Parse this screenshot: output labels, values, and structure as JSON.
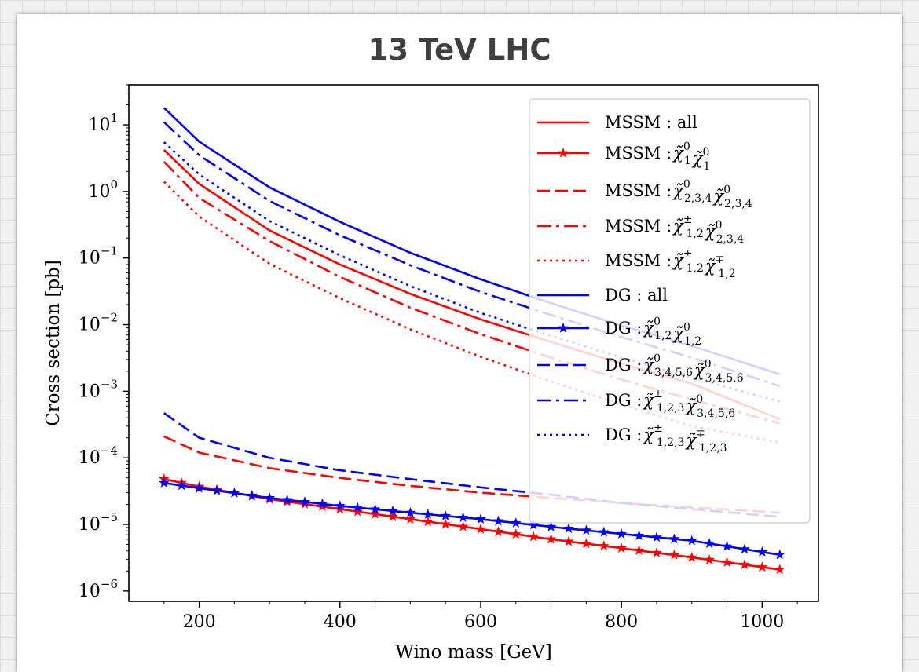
{
  "chart_data": {
    "type": "line",
    "title": "13 TeV LHC",
    "xlabel": "Wino mass [GeV]",
    "ylabel": "Cross section [pb]",
    "yscale": "log",
    "xlim": [
      100,
      1080
    ],
    "ylim": [
      7e-07,
      40
    ],
    "xticks": [
      200,
      400,
      600,
      800,
      1000
    ],
    "yticks": [
      {
        "exp": 1,
        "value": 10
      },
      {
        "exp": 0,
        "value": 1
      },
      {
        "exp": -1,
        "value": 0.1
      },
      {
        "exp": -2,
        "value": 0.01
      },
      {
        "exp": -3,
        "value": 0.001
      },
      {
        "exp": -4,
        "value": 0.0001
      },
      {
        "exp": -5,
        "value": 1e-05
      },
      {
        "exp": -6,
        "value": 1e-06
      }
    ],
    "grid": false,
    "legend_position": "upper right",
    "x": [
      150,
      200,
      300,
      400,
      500,
      600,
      700,
      800,
      900,
      1025
    ],
    "series": [
      {
        "name": "MSSM : all",
        "color": "#ff0000",
        "style": "solid",
        "values": [
          4.2,
          1.3,
          0.26,
          0.08,
          0.029,
          0.012,
          0.0055,
          0.0026,
          0.0013,
          0.00038
        ]
      },
      {
        "name": "MSSM :χ̃⁰₁χ̃⁰₁",
        "color": "#ff0000",
        "style": "solid",
        "marker": "star",
        "values": [
          4.8e-05,
          3.7e-05,
          2.4e-05,
          1.7e-05,
          1.2e-05,
          8.5e-06,
          6e-06,
          4.4e-06,
          3.2e-06,
          2.1e-06
        ]
      },
      {
        "name": "MSSM :χ̃⁰₂,₃,₄χ̃⁰₂,₃,₄",
        "color": "#ff0000",
        "style": "dashed",
        "values": [
          0.00021,
          0.00012,
          7e-05,
          5e-05,
          3.8e-05,
          3e-05,
          2.5e-05,
          2.1e-05,
          1.8e-05,
          1.5e-05
        ]
      },
      {
        "name": "MSSM :χ̃±₁,₂χ̃⁰₂,₃,₄",
        "color": "#ff0000",
        "style": "dashdot",
        "values": [
          2.8,
          0.8,
          0.18,
          0.052,
          0.018,
          0.0072,
          0.0032,
          0.0015,
          0.00075,
          0.00033
        ]
      },
      {
        "name": "MSSM :χ̃±₁,₂χ̃∓₁,₂",
        "color": "#ff0000",
        "style": "dotted",
        "values": [
          1.4,
          0.42,
          0.082,
          0.025,
          0.0085,
          0.0033,
          0.0014,
          0.00063,
          0.0003,
          0.00017
        ]
      },
      {
        "name": "DG : all",
        "color": "#0000ff",
        "style": "solid",
        "values": [
          18,
          5.6,
          1.15,
          0.35,
          0.12,
          0.048,
          0.021,
          0.0097,
          0.0048,
          0.0018
        ]
      },
      {
        "name": "DG :χ̃⁰₁,₂χ̃⁰₁,₂",
        "color": "#0000ff",
        "style": "solid",
        "marker": "star",
        "values": [
          4.2e-05,
          3.5e-05,
          2.5e-05,
          1.9e-05,
          1.5e-05,
          1.2e-05,
          9.2e-06,
          7.2e-06,
          5.7e-06,
          3.5e-06
        ]
      },
      {
        "name": "DG :χ̃⁰₃,₄,₅,₆χ̃⁰₃,₄,₅,₆",
        "color": "#0000ff",
        "style": "dashed",
        "values": [
          0.00047,
          0.0002,
          0.0001,
          6.5e-05,
          4.8e-05,
          3.6e-05,
          2.8e-05,
          2.1e-05,
          1.7e-05,
          1.3e-05
        ]
      },
      {
        "name": "DG :χ̃±₁,₂,₃χ̃⁰₃,₄,₅,₆",
        "color": "#0000ff",
        "style": "dashdot",
        "values": [
          11,
          3.5,
          0.72,
          0.22,
          0.078,
          0.031,
          0.014,
          0.0065,
          0.0032,
          0.0012
        ]
      },
      {
        "name": "DG :χ̃±₁,₂,₃χ̃∓₁,₂,₃",
        "color": "#0000ff",
        "style": "dotted",
        "values": [
          5.5,
          1.8,
          0.36,
          0.11,
          0.038,
          0.015,
          0.0068,
          0.0032,
          0.0016,
          0.0007
        ]
      }
    ]
  },
  "legend": [
    {
      "base": "MSSM : all",
      "sub": []
    },
    {
      "base": "MSSM :",
      "sub": [
        [
          "0",
          "1"
        ],
        [
          "0",
          "1"
        ]
      ]
    },
    {
      "base": "MSSM :",
      "sub": [
        [
          "0",
          "2,3,4"
        ],
        [
          "0",
          "2,3,4"
        ]
      ]
    },
    {
      "base": "MSSM :",
      "sub": [
        [
          "±",
          "1,2"
        ],
        [
          "0",
          "2,3,4"
        ]
      ]
    },
    {
      "base": "MSSM :",
      "sub": [
        [
          "±",
          "1,2"
        ],
        [
          "∓",
          "1,2"
        ]
      ]
    },
    {
      "base": "DG : all",
      "sub": []
    },
    {
      "base": "DG :",
      "sub": [
        [
          "0",
          "1,2"
        ],
        [
          "0",
          "1,2"
        ]
      ]
    },
    {
      "base": "DG :",
      "sub": [
        [
          "0",
          "3,4,5,6"
        ],
        [
          "0",
          "3,4,5,6"
        ]
      ]
    },
    {
      "base": "DG :",
      "sub": [
        [
          "±",
          "1,2,3"
        ],
        [
          "0",
          "3,4,5,6"
        ]
      ]
    },
    {
      "base": "DG :",
      "sub": [
        [
          "±",
          "1,2,3"
        ],
        [
          "∓",
          "1,2,3"
        ]
      ]
    }
  ]
}
